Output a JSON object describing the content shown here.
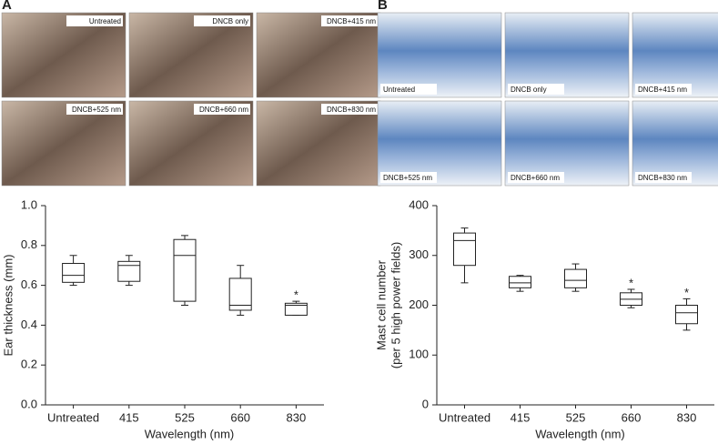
{
  "panels": [
    {
      "letter": "A",
      "images": [
        "Untreated",
        "DNCB only",
        "DNCB+415 nm",
        "DNCB+525 nm",
        "DNCB+660 nm",
        "DNCB+830 nm"
      ]
    },
    {
      "letter": "B",
      "images": [
        "Untreated",
        "DNCB only",
        "DNCB+415 nm",
        "DNCB+525 nm",
        "DNCB+660 nm",
        "DNCB+830 nm"
      ]
    }
  ],
  "chart_data": [
    {
      "type": "box",
      "categories": [
        "Untreated",
        "415",
        "525",
        "660",
        "830"
      ],
      "xlabel": "Wavelength (nm)",
      "ylabel": [
        "Ear thickness (mm)"
      ],
      "ylim": [
        0,
        1
      ],
      "yticks": [
        {
          "value": 0,
          "label": "0.0"
        },
        0.2,
        0.4,
        0.6,
        0.8,
        {
          "value": 1,
          "label": "1.0"
        }
      ],
      "boxes": {
        "min": [
          0.6,
          0.6,
          0.5,
          0.45,
          0.45
        ],
        "q1": [
          0.615,
          0.62,
          0.52,
          0.475,
          0.45
        ],
        "median": [
          0.65,
          0.7,
          0.75,
          0.5,
          0.5
        ],
        "q3": [
          0.71,
          0.72,
          0.83,
          0.635,
          0.51
        ],
        "max": [
          0.75,
          0.75,
          0.85,
          0.7,
          0.52
        ]
      },
      "annotations": [
        null,
        null,
        null,
        null,
        "*"
      ]
    },
    {
      "type": "box",
      "categories": [
        "Untreated",
        "415",
        "525",
        "660",
        "830"
      ],
      "xlabel": "Wavelength (nm)",
      "ylabel": [
        "Mast cell number",
        "(per 5 high power fields)"
      ],
      "ylim": [
        0,
        400
      ],
      "yticks": [
        0,
        100,
        200,
        300,
        400
      ],
      "boxes": {
        "min": [
          245,
          228,
          228,
          195,
          150
        ],
        "q1": [
          280,
          235,
          235,
          200,
          163
        ],
        "median": [
          330,
          245,
          250,
          212,
          185
        ],
        "q3": [
          345,
          258,
          272,
          225,
          200
        ],
        "max": [
          355,
          260,
          283,
          232,
          213
        ]
      },
      "annotations": [
        null,
        null,
        null,
        "*",
        "*"
      ]
    }
  ]
}
